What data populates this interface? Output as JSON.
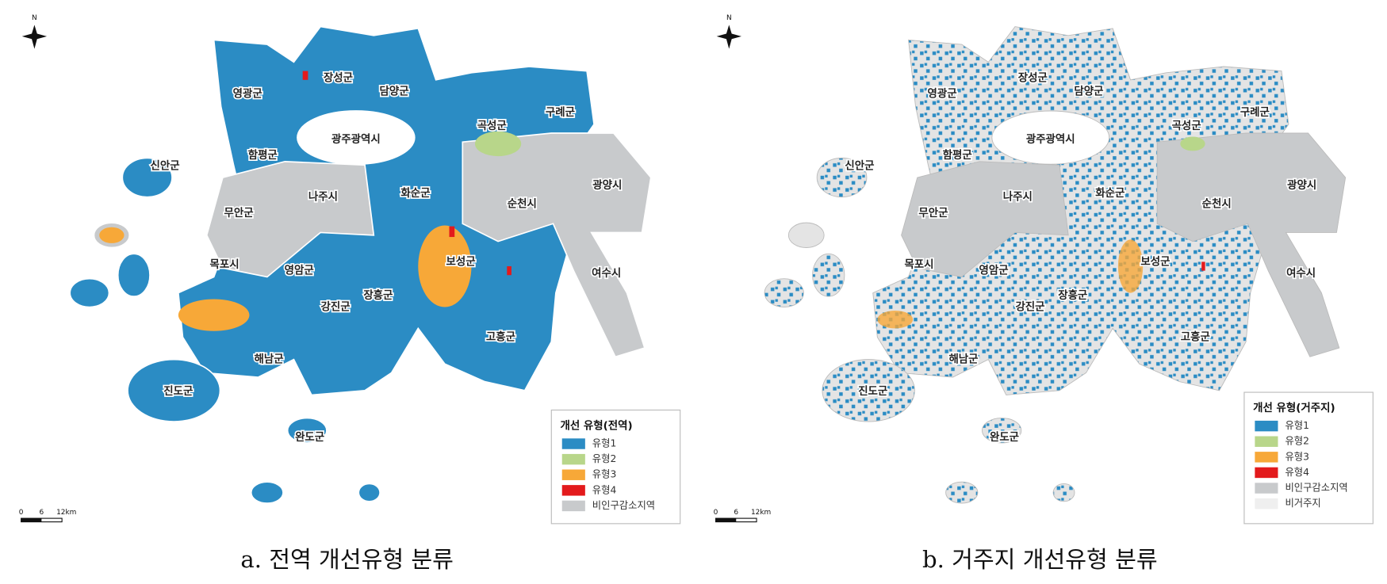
{
  "panels": [
    {
      "compass": "N",
      "regions": [
        "장성군",
        "담양군",
        "영광군",
        "구례군",
        "곡성군",
        "광주광역시",
        "함평군",
        "신안군",
        "광양시",
        "나주시",
        "화순군",
        "순천시",
        "무안군",
        "보성군",
        "목포시",
        "영암군",
        "여수시",
        "장흥군",
        "강진군",
        "고흥군",
        "해남군",
        "진도군",
        "완도군"
      ],
      "legend": {
        "title": "개선 유형(전역)",
        "items": [
          {
            "label": "유형1",
            "color": "#2b8cc4"
          },
          {
            "label": "유형2",
            "color": "#b8d68a"
          },
          {
            "label": "유형3",
            "color": "#f7a838"
          },
          {
            "label": "유형4",
            "color": "#e31a1c"
          },
          {
            "label": "비인구감소지역",
            "color": "#c8cacc"
          }
        ]
      },
      "scale": [
        "0",
        "6",
        "12km"
      ],
      "caption": "a. 전역 개선유형 분류"
    },
    {
      "compass": "N",
      "regions": [
        "장성군",
        "담양군",
        "영광군",
        "구례군",
        "곡성군",
        "광주광역시",
        "함평군",
        "신안군",
        "광양시",
        "나주시",
        "화순군",
        "순천시",
        "무안군",
        "보성군",
        "목포시",
        "영암군",
        "여수시",
        "장흥군",
        "강진군",
        "고흥군",
        "해남군",
        "진도군",
        "완도군"
      ],
      "legend": {
        "title": "개선 유형(거주지)",
        "items": [
          {
            "label": "유형1",
            "color": "#2b8cc4"
          },
          {
            "label": "유형2",
            "color": "#b8d68a"
          },
          {
            "label": "유형3",
            "color": "#f7a838"
          },
          {
            "label": "유형4",
            "color": "#e31a1c"
          },
          {
            "label": "비인구감소지역",
            "color": "#c8cacc"
          },
          {
            "label": "비거주지",
            "color": "#efefef"
          }
        ]
      },
      "scale": [
        "0",
        "6",
        "12km"
      ],
      "caption": "b. 거주지 개선유형 분류"
    }
  ]
}
